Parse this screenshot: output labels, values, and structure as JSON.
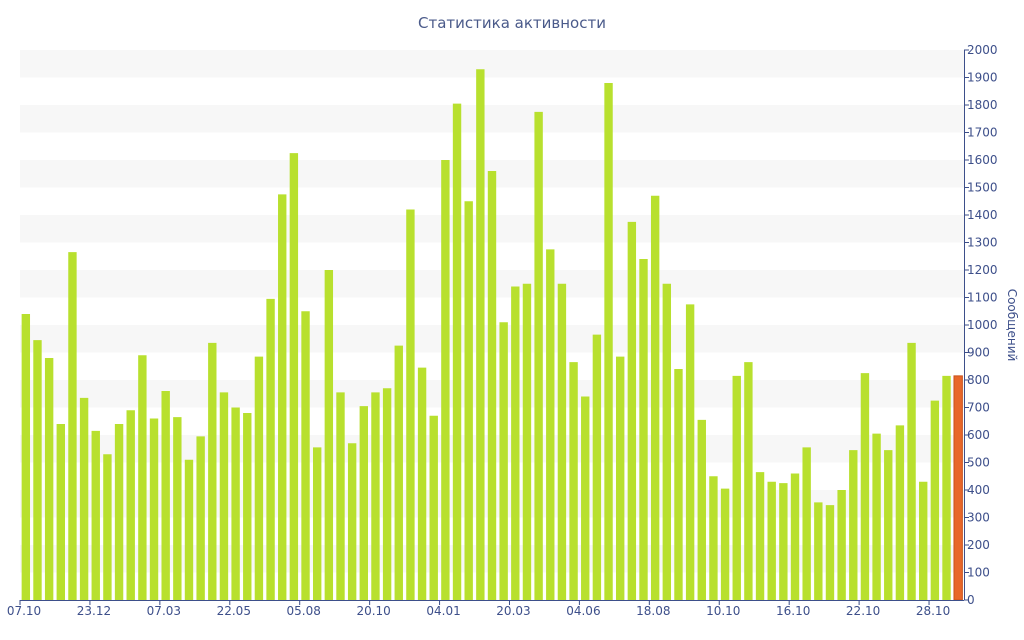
{
  "chart_data": {
    "type": "bar",
    "title": "Статистика активности",
    "ylabel": "Сообщений",
    "xlabel": "",
    "ylim": [
      0,
      2000
    ],
    "y_ticks": [
      0,
      100,
      200,
      300,
      400,
      500,
      600,
      700,
      800,
      900,
      1000,
      1100,
      1200,
      1300,
      1400,
      1500,
      1600,
      1700,
      1800,
      1900,
      2000
    ],
    "y_axis_side": "right",
    "grid": "alternating horizontal bands",
    "x_tick_labels": [
      {
        "label": "07.10",
        "index": 0
      },
      {
        "label": "23.12",
        "index": 6
      },
      {
        "label": "07.03",
        "index": 12
      },
      {
        "label": "22.05",
        "index": 18
      },
      {
        "label": "05.08",
        "index": 24
      },
      {
        "label": "20.10",
        "index": 30
      },
      {
        "label": "04.01",
        "index": 36
      },
      {
        "label": "20.03",
        "index": 42
      },
      {
        "label": "04.06",
        "index": 48
      },
      {
        "label": "18.08",
        "index": 54
      },
      {
        "label": "10.10",
        "index": 60
      },
      {
        "label": "16.10",
        "index": 66
      },
      {
        "label": "22.10",
        "index": 72
      },
      {
        "label": "28.10",
        "index": 78
      }
    ],
    "values": [
      1040,
      945,
      880,
      640,
      1265,
      735,
      615,
      530,
      640,
      690,
      890,
      660,
      760,
      665,
      510,
      595,
      935,
      755,
      700,
      680,
      885,
      1095,
      1475,
      1625,
      1050,
      555,
      1200,
      755,
      570,
      705,
      755,
      770,
      925,
      1420,
      845,
      670,
      1600,
      1805,
      1450,
      1930,
      1560,
      1010,
      1140,
      1150,
      1775,
      1275,
      1150,
      865,
      740,
      965,
      1880,
      885,
      1375,
      1240,
      1470,
      1150,
      840,
      1075,
      655,
      450,
      405,
      815,
      865,
      465,
      430,
      425,
      460,
      555,
      355,
      345,
      400,
      545,
      825,
      605,
      545,
      635,
      935,
      430,
      725,
      815,
      815
    ],
    "highlight_index": 80,
    "colors": {
      "bar": "#b8e02e",
      "highlight": "#e8672a",
      "highlight_border": "#c9521c",
      "axis": "#3d4f8a",
      "band": "#f7f7f7"
    }
  }
}
